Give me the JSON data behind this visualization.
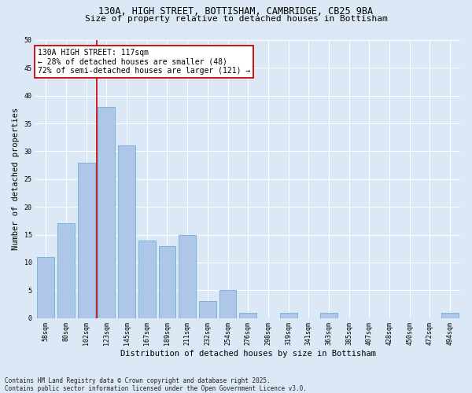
{
  "title_line1": "130A, HIGH STREET, BOTTISHAM, CAMBRIDGE, CB25 9BA",
  "title_line2": "Size of property relative to detached houses in Bottisham",
  "xlabel": "Distribution of detached houses by size in Bottisham",
  "ylabel": "Number of detached properties",
  "categories": [
    "58sqm",
    "80sqm",
    "102sqm",
    "123sqm",
    "145sqm",
    "167sqm",
    "189sqm",
    "211sqm",
    "232sqm",
    "254sqm",
    "276sqm",
    "298sqm",
    "319sqm",
    "341sqm",
    "363sqm",
    "385sqm",
    "407sqm",
    "428sqm",
    "450sqm",
    "472sqm",
    "494sqm"
  ],
  "values": [
    11,
    17,
    28,
    38,
    31,
    14,
    13,
    15,
    3,
    5,
    1,
    0,
    1,
    0,
    1,
    0,
    0,
    0,
    0,
    0,
    1
  ],
  "bar_color": "#aec6e8",
  "bar_edge_color": "#6baed6",
  "bar_width": 0.85,
  "vline_x": 2.5,
  "vline_color": "#cc0000",
  "annotation_text": "130A HIGH STREET: 117sqm\n← 28% of detached houses are smaller (48)\n72% of semi-detached houses are larger (121) →",
  "annotation_box_color": "#ffffff",
  "annotation_box_edge_color": "#cc0000",
  "ylim": [
    0,
    50
  ],
  "yticks": [
    0,
    5,
    10,
    15,
    20,
    25,
    30,
    35,
    40,
    45,
    50
  ],
  "footnote": "Contains HM Land Registry data © Crown copyright and database right 2025.\nContains public sector information licensed under the Open Government Licence v3.0.",
  "background_color": "#dce8f5",
  "plot_bg_color": "#dce8f5",
  "grid_color": "#ffffff",
  "title_fontsize": 8.5,
  "subtitle_fontsize": 8,
  "axis_label_fontsize": 7.5,
  "tick_fontsize": 6,
  "annotation_fontsize": 7,
  "footnote_fontsize": 5.5
}
